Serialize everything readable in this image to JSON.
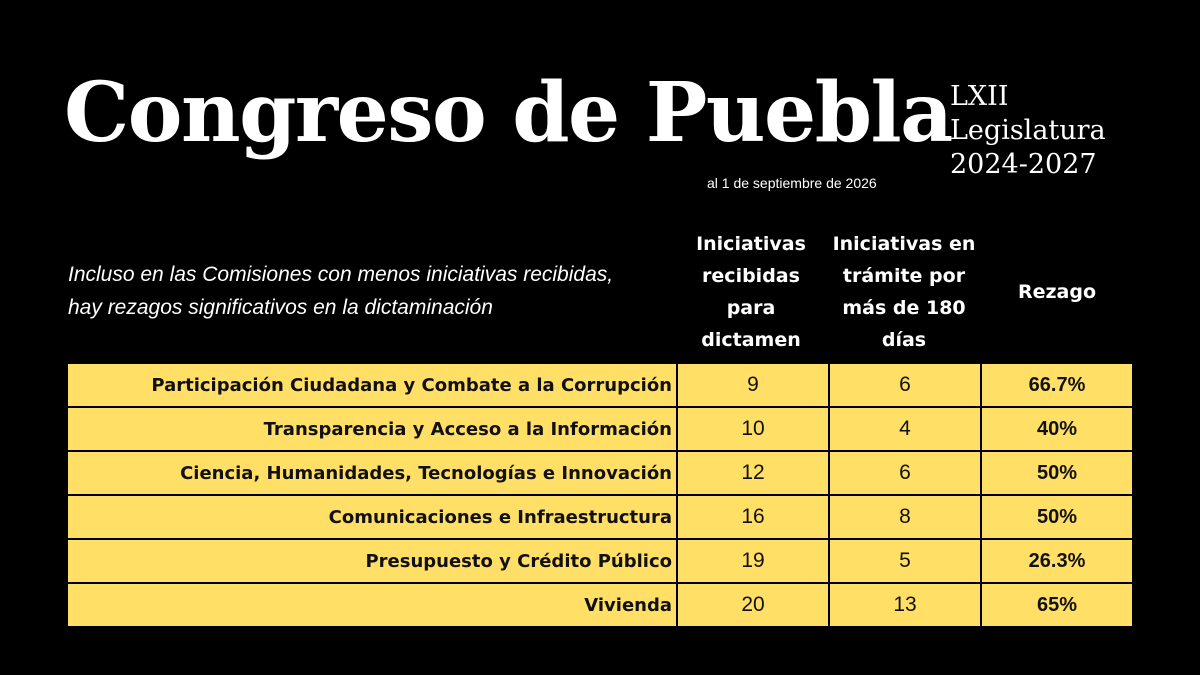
{
  "header": {
    "title": "Congreso de Puebla",
    "date_note": "al 1 de septiembre de 2026",
    "legislatura": [
      "LXII",
      "Legislatura",
      "2024-2027"
    ]
  },
  "subtitle": "Incluso en las Comisiones con menos iniciativas recibidas, hay rezagos significativos en la dictaminación",
  "table": {
    "columns": [
      "Iniciativas recibidas para dictamen",
      "Iniciativas en trámite por más de 180 días",
      "Rezago"
    ],
    "rows": [
      {
        "comision": "Participación Ciudadana y Combate a la Corrupción",
        "recibidas": "9",
        "tramite": "6",
        "rezago": "66.7%"
      },
      {
        "comision": "Transparencia y Acceso a la Información",
        "recibidas": "10",
        "tramite": "4",
        "rezago": "40%"
      },
      {
        "comision": "Ciencia, Humanidades, Tecnologías e Innovación",
        "recibidas": "12",
        "tramite": "6",
        "rezago": "50%"
      },
      {
        "comision": "Comunicaciones e Infraestructura",
        "recibidas": "16",
        "tramite": "8",
        "rezago": "50%"
      },
      {
        "comision": "Presupuesto y Crédito Público",
        "recibidas": "19",
        "tramite": "5",
        "rezago": "26.3%"
      },
      {
        "comision": "Vivienda",
        "recibidas": "20",
        "tramite": "13",
        "rezago": "65%"
      }
    ]
  },
  "colors": {
    "background": "#000000",
    "row_fill": "#ffdf66",
    "text_light": "#ffffff"
  }
}
